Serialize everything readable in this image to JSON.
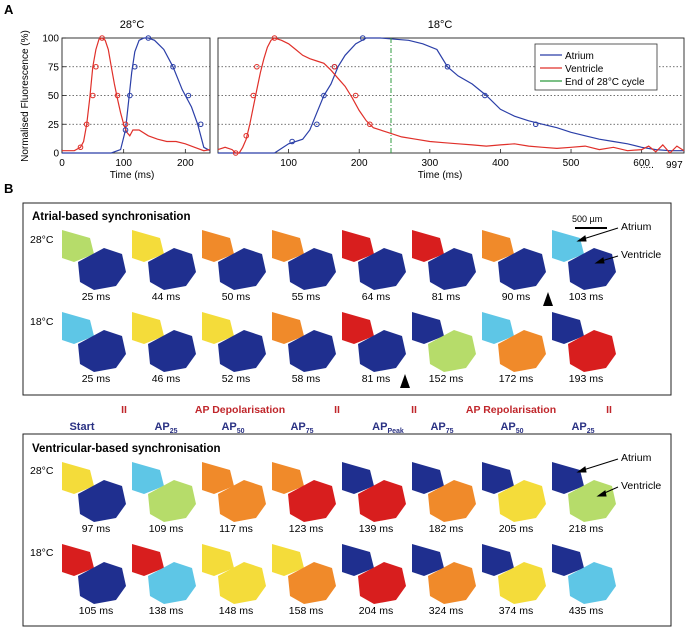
{
  "panel_a": {
    "label": "A",
    "title_28": "28°C",
    "title_18": "18°C",
    "ylabel": "Normalised Fluorescence (%)",
    "xlabel": "Time (ms)",
    "yticks": [
      "0",
      "25",
      "50",
      "75",
      "100"
    ],
    "xticks_28": [
      "0",
      "100",
      "200"
    ],
    "xticks_18": [
      "100",
      "200",
      "300",
      "400",
      "500",
      "600"
    ],
    "xtick_ellipsis": ".....",
    "xtick_end": "997",
    "legend": [
      "Atrium",
      "Ventricle",
      "End of 28°C cycle"
    ]
  },
  "panel_b": {
    "label": "B",
    "scale_bar": "500 µm",
    "atrial_box": {
      "title": "Atrial-based synchronisation",
      "rows": [
        {
          "temp": "28°C",
          "times": [
            "25 ms",
            "44 ms",
            "50 ms",
            "55 ms",
            "64 ms",
            "81 ms",
            "90 ms",
            "103 ms"
          ]
        },
        {
          "temp": "18°C",
          "times": [
            "25 ms",
            "46 ms",
            "52 ms",
            "58 ms",
            "81 ms",
            "152 ms",
            "172 ms",
            "193 ms"
          ]
        }
      ],
      "annot_atrium": "Atrium",
      "annot_ventricle": "Ventricle"
    },
    "phases": {
      "depol": "AP Depolarisation",
      "repol": "AP Repolarisation",
      "sep": "II",
      "labels": [
        {
          "main": "Start",
          "sub": ""
        },
        {
          "main": "AP",
          "sub": "25"
        },
        {
          "main": "AP",
          "sub": "50"
        },
        {
          "main": "AP",
          "sub": "75"
        },
        {
          "main": "AP",
          "sub": "Peak"
        },
        {
          "main": "AP",
          "sub": "75"
        },
        {
          "main": "AP",
          "sub": "50"
        },
        {
          "main": "AP",
          "sub": "25"
        }
      ]
    },
    "ventricular_box": {
      "title": "Ventricular-based synchronisation",
      "rows": [
        {
          "temp": "28°C",
          "times": [
            "97 ms",
            "109 ms",
            "117 ms",
            "123 ms",
            "139 ms",
            "182 ms",
            "205 ms",
            "218 ms"
          ]
        },
        {
          "temp": "18°C",
          "times": [
            "105 ms",
            "138 ms",
            "148 ms",
            "158 ms",
            "204 ms",
            "324 ms",
            "374 ms",
            "435 ms"
          ]
        }
      ],
      "annot_atrium": "Atrium",
      "annot_ventricle": "Ventricle"
    },
    "colors": {
      "blue": "#1f2f8f",
      "cyan": "#5ec6e6",
      "green": "#b6dc6a",
      "yellow": "#f4dc3a",
      "orange": "#f08a2a",
      "red": "#d81e1e"
    },
    "atrial_states": [
      [
        [
          "g",
          "b"
        ],
        [
          "y",
          "b"
        ],
        [
          "o",
          "b"
        ],
        [
          "o",
          "b"
        ],
        [
          "r",
          "b"
        ],
        [
          "r",
          "b"
        ],
        [
          "o",
          "b"
        ],
        [
          "c",
          "b"
        ]
      ],
      [
        [
          "c",
          "b"
        ],
        [
          "y",
          "b"
        ],
        [
          "y",
          "b"
        ],
        [
          "o",
          "b"
        ],
        [
          "r",
          "b"
        ],
        [
          "b",
          "g"
        ],
        [
          "c",
          "o"
        ],
        [
          "b",
          "r"
        ]
      ]
    ],
    "ventricular_states": [
      [
        [
          "y",
          "b"
        ],
        [
          "c",
          "g"
        ],
        [
          "o",
          "o"
        ],
        [
          "o",
          "r"
        ],
        [
          "b",
          "r"
        ],
        [
          "b",
          "o"
        ],
        [
          "b",
          "y"
        ],
        [
          "b",
          "g"
        ]
      ],
      [
        [
          "r",
          "b"
        ],
        [
          "r",
          "c"
        ],
        [
          "y",
          "y"
        ],
        [
          "y",
          "o"
        ],
        [
          "b",
          "r"
        ],
        [
          "b",
          "o"
        ],
        [
          "b",
          "y"
        ],
        [
          "b",
          "c"
        ]
      ]
    ]
  },
  "chart_data": [
    {
      "type": "line",
      "title": "28°C",
      "xlabel": "Time (ms)",
      "ylabel": "Normalised Fluorescence (%)",
      "xlim": [
        0,
        240
      ],
      "ylim": [
        0,
        100
      ],
      "grid": "dotted horizontal at 25, 50, 75",
      "series": [
        {
          "name": "Atrium",
          "color": "#2b3fa8",
          "x": [
            0,
            20,
            40,
            60,
            80,
            95,
            103,
            108,
            113,
            118,
            125,
            133,
            140,
            150,
            165,
            180,
            195,
            210,
            220,
            230,
            240
          ],
          "y": [
            0,
            0,
            0,
            0,
            0,
            3,
            20,
            45,
            70,
            88,
            98,
            100,
            100,
            98,
            90,
            75,
            55,
            40,
            25,
            5,
            2
          ]
        },
        {
          "name": "Ventricle",
          "color": "#e0302a",
          "x": [
            0,
            10,
            20,
            30,
            35,
            40,
            45,
            50,
            55,
            60,
            65,
            70,
            75,
            80,
            85,
            90,
            95,
            100,
            105,
            110,
            115,
            125,
            140,
            155,
            170,
            185,
            200,
            215,
            230,
            240
          ],
          "y": [
            2,
            2,
            2,
            5,
            10,
            25,
            48,
            75,
            90,
            99,
            100,
            98,
            90,
            75,
            60,
            47,
            35,
            25,
            18,
            15,
            20,
            20,
            15,
            12,
            10,
            10,
            8,
            5,
            2,
            3
          ]
        }
      ],
      "markers_atrium": [
        [
          103,
          20
        ],
        [
          110,
          50
        ],
        [
          118,
          75
        ],
        [
          140,
          100
        ],
        [
          180,
          75
        ],
        [
          205,
          50
        ],
        [
          225,
          25
        ]
      ],
      "markers_ventricle": [
        [
          30,
          5
        ],
        [
          40,
          25
        ],
        [
          50,
          50
        ],
        [
          55,
          75
        ],
        [
          65,
          100
        ],
        [
          90,
          50
        ],
        [
          103,
          25
        ]
      ]
    },
    {
      "type": "line",
      "title": "18°C",
      "xlabel": "Time (ms)",
      "xlim": [
        0,
        660
      ],
      "ylim": [
        0,
        100
      ],
      "grid": "dotted horizontal at 25, 50, 75",
      "series": [
        {
          "name": "Atrium",
          "color": "#2b3fa8",
          "x": [
            0,
            20,
            40,
            60,
            80,
            100,
            120,
            130,
            140,
            150,
            160,
            170,
            180,
            195,
            210,
            230,
            250,
            270,
            290,
            310,
            325,
            340,
            360,
            380,
            400,
            420,
            440,
            460,
            480,
            500,
            520,
            540,
            560,
            580,
            600,
            620,
            640,
            660
          ],
          "y": [
            0,
            0,
            0,
            0,
            0,
            8,
            12,
            20,
            35,
            50,
            60,
            75,
            85,
            95,
            100,
            100,
            99,
            98,
            95,
            90,
            75,
            67,
            60,
            50,
            38,
            32,
            28,
            25,
            22,
            18,
            15,
            12,
            10,
            8,
            5,
            3,
            2,
            2
          ]
        },
        {
          "name": "Ventricle",
          "color": "#e0302a",
          "x": [
            0,
            10,
            20,
            25,
            30,
            35,
            40,
            45,
            50,
            55,
            60,
            65,
            70,
            75,
            80,
            90,
            100,
            110,
            120,
            130,
            140,
            150,
            160,
            170,
            180,
            190,
            200,
            210,
            220,
            240,
            260,
            280,
            300,
            320,
            340,
            360,
            380,
            400,
            420,
            440,
            460,
            480,
            500,
            520,
            540,
            560,
            580,
            600,
            610,
            620,
            630,
            640,
            650,
            660
          ],
          "y": [
            3,
            5,
            3,
            0,
            0,
            5,
            12,
            25,
            40,
            55,
            70,
            82,
            92,
            98,
            100,
            98,
            95,
            90,
            85,
            82,
            80,
            78,
            72,
            65,
            58,
            48,
            37,
            28,
            22,
            18,
            14,
            12,
            10,
            9,
            8,
            7,
            6,
            7,
            8,
            6,
            5,
            4,
            5,
            6,
            3,
            5,
            2,
            3,
            6,
            1,
            7,
            0,
            6,
            2
          ]
        },
        {
          "name": "End of 28°C cycle",
          "color": "#2e9a3e",
          "x": [
            245,
            245
          ],
          "y": [
            0,
            100
          ]
        }
      ],
      "markers_atrium": [
        [
          105,
          10
        ],
        [
          140,
          25
        ],
        [
          150,
          50
        ],
        [
          165,
          75
        ],
        [
          205,
          100
        ],
        [
          325,
          75
        ],
        [
          378,
          50
        ],
        [
          450,
          25
        ]
      ],
      "markers_ventricle": [
        [
          25,
          0
        ],
        [
          40,
          15
        ],
        [
          50,
          50
        ],
        [
          55,
          75
        ],
        [
          80,
          100
        ],
        [
          165,
          75
        ],
        [
          195,
          50
        ],
        [
          215,
          25
        ]
      ]
    }
  ]
}
